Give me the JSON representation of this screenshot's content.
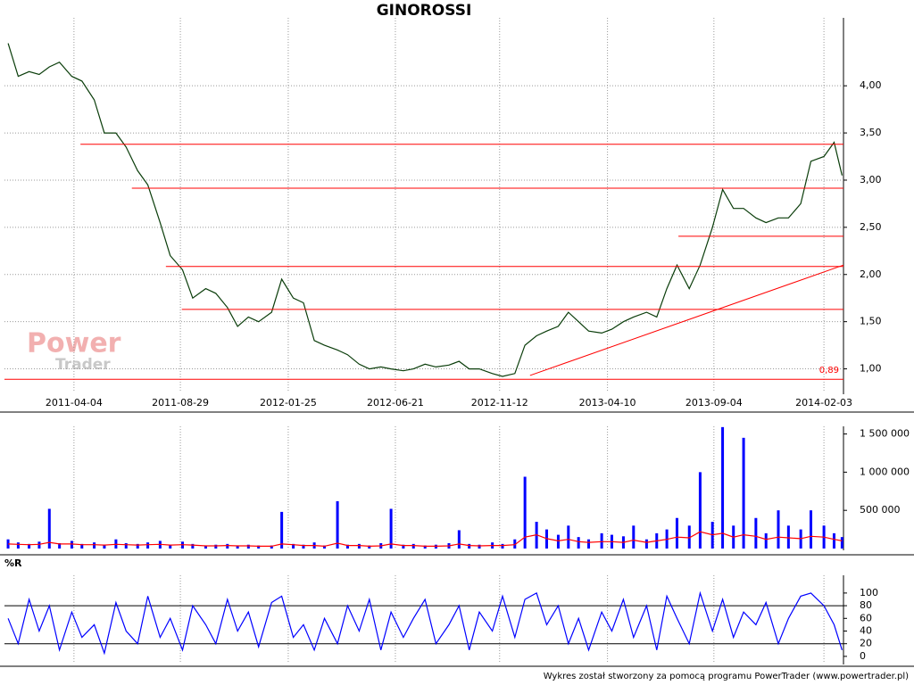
{
  "chart_data": [
    {
      "type": "line",
      "title": "GINOROSSI",
      "watermark": [
        "Power",
        "Trader"
      ],
      "grid": true,
      "xlim": [
        "2010-12-29",
        "2014-03-02"
      ],
      "xticks": [
        "2011-04-04",
        "2011-08-29",
        "2012-01-25",
        "2012-06-21",
        "2012-11-12",
        "2013-04-10",
        "2013-09-04",
        "2014-02-03"
      ],
      "ylim": [
        0.75,
        4.72
      ],
      "yticks": [
        {
          "value": 1,
          "label": "1,00"
        },
        {
          "value": 1.5,
          "label": "1,50"
        },
        {
          "value": 2,
          "label": "2,00"
        },
        {
          "value": 2.5,
          "label": "2,50"
        },
        {
          "value": 3,
          "label": "3,00"
        },
        {
          "value": 3.5,
          "label": "3,50"
        },
        {
          "value": 4,
          "label": "4,00"
        }
      ],
      "color": "#0a3d0a",
      "x": [
        "2011-01-03",
        "2011-01-17",
        "2011-02-01",
        "2011-02-15",
        "2011-03-01",
        "2011-03-15",
        "2011-04-01",
        "2011-04-15",
        "2011-05-02",
        "2011-05-16",
        "2011-06-01",
        "2011-06-15",
        "2011-07-01",
        "2011-07-15",
        "2011-08-01",
        "2011-08-15",
        "2011-09-01",
        "2011-09-15",
        "2011-10-03",
        "2011-10-17",
        "2011-11-02",
        "2011-11-16",
        "2011-12-01",
        "2011-12-15",
        "2012-01-02",
        "2012-01-16",
        "2012-02-01",
        "2012-02-15",
        "2012-03-01",
        "2012-03-15",
        "2012-04-02",
        "2012-04-16",
        "2012-05-02",
        "2012-05-16",
        "2012-06-01",
        "2012-06-15",
        "2012-07-02",
        "2012-07-16",
        "2012-08-01",
        "2012-08-16",
        "2012-09-03",
        "2012-09-17",
        "2012-10-01",
        "2012-10-15",
        "2012-11-02",
        "2012-11-16",
        "2012-12-03",
        "2012-12-17",
        "2013-01-02",
        "2013-01-16",
        "2013-02-01",
        "2013-02-15",
        "2013-03-01",
        "2013-03-15",
        "2013-04-02",
        "2013-04-16",
        "2013-05-02",
        "2013-05-16",
        "2013-06-03",
        "2013-06-17",
        "2013-07-01",
        "2013-07-15",
        "2013-08-01",
        "2013-08-16",
        "2013-09-02",
        "2013-09-16",
        "2013-10-01",
        "2013-10-15",
        "2013-11-01",
        "2013-11-15",
        "2013-12-02",
        "2013-12-16",
        "2014-01-02",
        "2014-01-16",
        "2014-02-03",
        "2014-02-17",
        "2014-02-28"
      ],
      "values": [
        4.45,
        4.1,
        4.15,
        4.12,
        4.2,
        4.25,
        4.1,
        4.05,
        3.85,
        3.5,
        3.5,
        3.35,
        3.1,
        2.95,
        2.55,
        2.2,
        2.05,
        1.75,
        1.85,
        1.8,
        1.65,
        1.45,
        1.55,
        1.5,
        1.6,
        1.95,
        1.75,
        1.7,
        1.3,
        1.25,
        1.2,
        1.15,
        1.05,
        1.0,
        1.02,
        1.0,
        0.98,
        1.0,
        1.05,
        1.02,
        1.04,
        1.08,
        1.0,
        1.0,
        0.95,
        0.92,
        0.95,
        1.25,
        1.35,
        1.4,
        1.45,
        1.6,
        1.5,
        1.4,
        1.38,
        1.42,
        1.5,
        1.55,
        1.6,
        1.55,
        1.85,
        2.1,
        1.85,
        2.1,
        2.5,
        2.9,
        2.7,
        2.7,
        2.6,
        2.55,
        2.6,
        2.6,
        2.75,
        3.2,
        3.25,
        3.4,
        3.05
      ],
      "level_color": "#ff0000",
      "levels": [
        {
          "from": "2011-04-13",
          "to": "2014-03-02",
          "value": 3.38
        },
        {
          "from": "2011-06-23",
          "to": "2014-03-02",
          "value": 2.915
        },
        {
          "from": "2013-07-17",
          "to": "2014-03-02",
          "value": 2.405
        },
        {
          "from": "2011-08-09",
          "to": "2014-03-02",
          "value": 2.085
        },
        {
          "from": "2011-08-31",
          "to": "2014-03-02",
          "value": 1.63
        },
        {
          "from": "2010-12-29",
          "to": "2014-03-02",
          "value": 0.89,
          "label": "0,89"
        }
      ],
      "trend_line": {
        "x": [
          "2012-12-24",
          "2014-03-02"
        ],
        "values": [
          0.93,
          2.1
        ]
      }
    },
    {
      "type": "bar",
      "xlim": [
        "2010-12-29",
        "2014-03-02"
      ],
      "color": "#0000ff",
      "ylim": [
        0,
        1600000
      ],
      "yticks": [
        {
          "value": 500000,
          "label": "500 000"
        },
        {
          "value": 1000000,
          "label": "1 000 000"
        },
        {
          "value": 1500000,
          "label": "1 500 000"
        }
      ],
      "x": [
        "2011-01-03",
        "2011-01-17",
        "2011-02-01",
        "2011-02-15",
        "2011-03-01",
        "2011-03-15",
        "2011-04-01",
        "2011-04-15",
        "2011-05-02",
        "2011-05-16",
        "2011-06-01",
        "2011-06-15",
        "2011-07-01",
        "2011-07-15",
        "2011-08-01",
        "2011-08-15",
        "2011-09-01",
        "2011-09-15",
        "2011-10-03",
        "2011-10-17",
        "2011-11-02",
        "2011-11-16",
        "2011-12-01",
        "2011-12-15",
        "2012-01-02",
        "2012-01-16",
        "2012-02-01",
        "2012-02-15",
        "2012-03-01",
        "2012-03-15",
        "2012-04-02",
        "2012-04-16",
        "2012-05-02",
        "2012-05-16",
        "2012-06-01",
        "2012-06-15",
        "2012-07-02",
        "2012-07-16",
        "2012-08-01",
        "2012-08-16",
        "2012-09-03",
        "2012-09-17",
        "2012-10-01",
        "2012-10-15",
        "2012-11-02",
        "2012-11-16",
        "2012-12-03",
        "2012-12-17",
        "2013-01-02",
        "2013-01-16",
        "2013-02-01",
        "2013-02-15",
        "2013-03-01",
        "2013-03-15",
        "2013-04-02",
        "2013-04-16",
        "2013-05-02",
        "2013-05-16",
        "2013-06-03",
        "2013-06-17",
        "2013-07-01",
        "2013-07-15",
        "2013-08-01",
        "2013-08-16",
        "2013-09-02",
        "2013-09-16",
        "2013-10-01",
        "2013-10-15",
        "2013-11-01",
        "2013-11-15",
        "2013-12-02",
        "2013-12-16",
        "2014-01-02",
        "2014-01-16",
        "2014-02-03",
        "2014-02-17",
        "2014-02-28"
      ],
      "values": [
        120000,
        80000,
        60000,
        90000,
        520000,
        70000,
        100000,
        60000,
        80000,
        50000,
        120000,
        70000,
        60000,
        80000,
        100000,
        50000,
        90000,
        60000,
        40000,
        50000,
        60000,
        40000,
        50000,
        40000,
        40000,
        480000,
        60000,
        50000,
        80000,
        40000,
        620000,
        50000,
        60000,
        40000,
        70000,
        520000,
        50000,
        60000,
        40000,
        50000,
        70000,
        240000,
        60000,
        50000,
        80000,
        60000,
        120000,
        940000,
        350000,
        250000,
        180000,
        300000,
        150000,
        120000,
        200000,
        180000,
        160000,
        300000,
        120000,
        200000,
        250000,
        400000,
        300000,
        1000000,
        350000,
        1590000,
        300000,
        1450000,
        400000,
        200000,
        500000,
        300000,
        250000,
        500000,
        300000,
        200000,
        150000
      ],
      "average": {
        "color": "#ff0000",
        "values": [
          60000,
          55000,
          50000,
          55000,
          80000,
          60000,
          60000,
          50000,
          50000,
          45000,
          55000,
          50000,
          45000,
          50000,
          55000,
          45000,
          50000,
          45000,
          35000,
          35000,
          40000,
          35000,
          35000,
          30000,
          30000,
          60000,
          50000,
          40000,
          40000,
          30000,
          70000,
          40000,
          40000,
          30000,
          35000,
          60000,
          40000,
          40000,
          30000,
          30000,
          35000,
          60000,
          40000,
          35000,
          40000,
          40000,
          50000,
          150000,
          180000,
          130000,
          100000,
          120000,
          90000,
          80000,
          90000,
          90000,
          80000,
          110000,
          80000,
          100000,
          120000,
          150000,
          140000,
          220000,
          180000,
          200000,
          150000,
          180000,
          160000,
          120000,
          150000,
          140000,
          130000,
          160000,
          150000,
          120000,
          100000
        ]
      }
    },
    {
      "type": "line",
      "title": "%R",
      "xlim": [
        "2010-12-29",
        "2014-03-02"
      ],
      "color": "#0000ff",
      "ylim": [
        -10,
        128
      ],
      "yticks": [
        0,
        20,
        40,
        60,
        80,
        100
      ],
      "levels": [
        20,
        80
      ],
      "x": [
        "2011-01-03",
        "2011-01-17",
        "2011-02-01",
        "2011-02-15",
        "2011-03-01",
        "2011-03-15",
        "2011-04-01",
        "2011-04-15",
        "2011-05-02",
        "2011-05-16",
        "2011-06-01",
        "2011-06-15",
        "2011-07-01",
        "2011-07-15",
        "2011-08-01",
        "2011-08-15",
        "2011-09-01",
        "2011-09-15",
        "2011-10-03",
        "2011-10-17",
        "2011-11-02",
        "2011-11-16",
        "2011-12-01",
        "2011-12-15",
        "2012-01-02",
        "2012-01-16",
        "2012-02-01",
        "2012-02-15",
        "2012-03-01",
        "2012-03-15",
        "2012-04-02",
        "2012-04-16",
        "2012-05-02",
        "2012-05-16",
        "2012-06-01",
        "2012-06-15",
        "2012-07-02",
        "2012-07-16",
        "2012-08-01",
        "2012-08-16",
        "2012-09-03",
        "2012-09-17",
        "2012-10-01",
        "2012-10-15",
        "2012-11-02",
        "2012-11-16",
        "2012-12-03",
        "2012-12-17",
        "2013-01-02",
        "2013-01-16",
        "2013-02-01",
        "2013-02-15",
        "2013-03-01",
        "2013-03-15",
        "2013-04-02",
        "2013-04-16",
        "2013-05-02",
        "2013-05-16",
        "2013-06-03",
        "2013-06-17",
        "2013-07-01",
        "2013-07-15",
        "2013-08-01",
        "2013-08-16",
        "2013-09-02",
        "2013-09-16",
        "2013-10-01",
        "2013-10-15",
        "2013-11-01",
        "2013-11-15",
        "2013-12-02",
        "2013-12-16",
        "2014-01-02",
        "2014-01-16",
        "2014-02-03",
        "2014-02-17",
        "2014-02-28"
      ],
      "values": [
        60,
        20,
        90,
        40,
        80,
        10,
        70,
        30,
        50,
        5,
        85,
        40,
        20,
        95,
        30,
        60,
        10,
        80,
        50,
        20,
        90,
        40,
        70,
        15,
        85,
        95,
        30,
        50,
        10,
        60,
        20,
        80,
        40,
        90,
        10,
        70,
        30,
        60,
        90,
        20,
        50,
        80,
        10,
        70,
        40,
        95,
        30,
        90,
        100,
        50,
        80,
        20,
        60,
        10,
        70,
        40,
        90,
        30,
        80,
        10,
        95,
        60,
        20,
        100,
        40,
        90,
        30,
        70,
        50,
        85,
        20,
        60,
        95,
        100,
        80,
        50,
        10
      ]
    }
  ],
  "footer": "Wykres został stworzony za pomocą programu PowerTrader (www.powertrader.pl)"
}
